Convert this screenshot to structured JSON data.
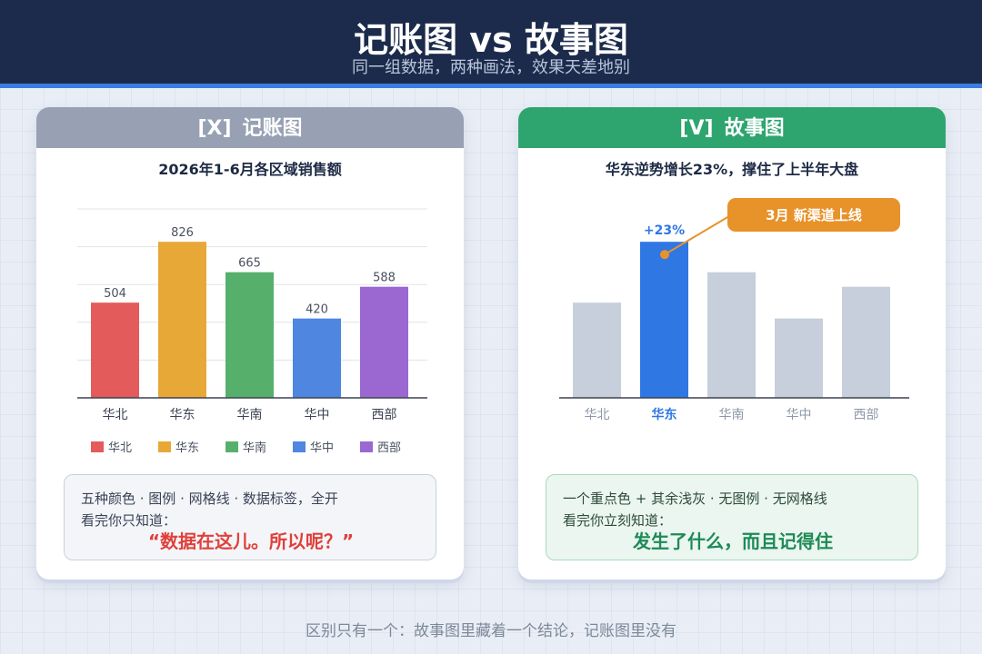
{
  "header": {
    "title": "记账图 vs 故事图",
    "subtitle": "同一组数据，两种画法，效果天差地别"
  },
  "left_panel": {
    "tag": "[X]",
    "title": "记账图",
    "note_line1": "五种颜色 · 图例 · 网格线 · 数据标签，全开",
    "note_line2": "看完你只知道：",
    "note_emphasis": "“数据在这儿。所以呢？”"
  },
  "right_panel": {
    "tag": "[V]",
    "title": "故事图",
    "note_line1": "一个重点色 + 其余浅灰 · 无图例 · 无网格线",
    "note_line2": "看完你立刻知道：",
    "note_emphasis": "发生了什么，而且记得住"
  },
  "footer": "区别只有一个：故事图里藏着一个结论，记账图里没有",
  "chart_data": [
    {
      "type": "bar",
      "title": "2026年1-6月各区域销售额",
      "categories": [
        "华北",
        "华东",
        "华南",
        "华中",
        "西部"
      ],
      "values": [
        504,
        826,
        665,
        420,
        588
      ],
      "ylim": [
        0,
        1000
      ],
      "grid": true,
      "data_labels": true,
      "legend": "bottom",
      "colors": [
        "#e35b5b",
        "#e8a838",
        "#56b06b",
        "#4f86e0",
        "#9a68d0"
      ]
    },
    {
      "type": "bar",
      "title": "华东逆势增长23%，撑住了上半年大盘",
      "categories": [
        "华北",
        "华东",
        "华南",
        "华中",
        "西部"
      ],
      "values": [
        504,
        826,
        665,
        420,
        588
      ],
      "ylim": [
        0,
        1000
      ],
      "grid": false,
      "legend": "none",
      "highlight_index": 1,
      "highlight_color": "#2f77e3",
      "muted_color": "#c6cfdb",
      "highlight_label": "+23%",
      "annotation": "3月 新渠道上线",
      "annotation_color": "#e8922a"
    }
  ]
}
